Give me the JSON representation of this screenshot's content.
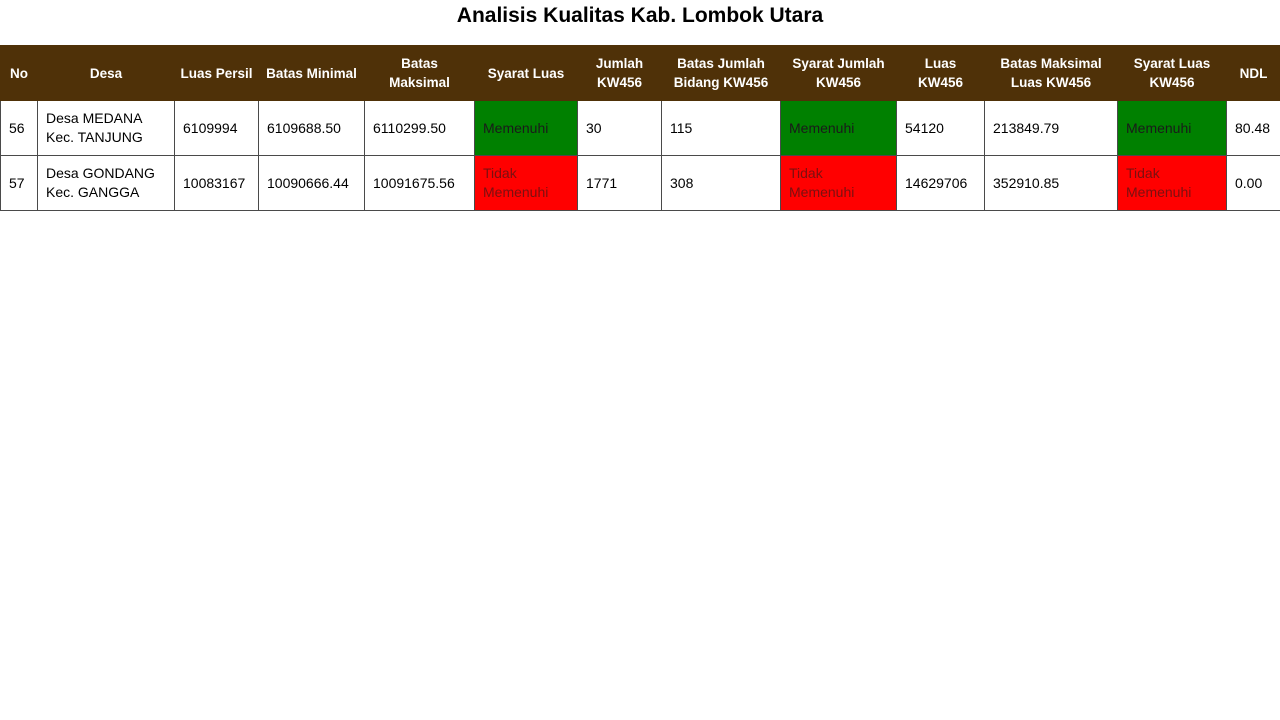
{
  "title": "Analisis Kualitas Kab. Lombok Utara",
  "colors": {
    "header_bg": "#4f3108",
    "header_text": "#ffffff",
    "memenuhi": "#008000",
    "tidak_memenuhi": "#ff0000"
  },
  "table": {
    "headers": [
      "No",
      "Desa",
      "Luas Persil",
      "Batas Minimal",
      "Batas Maksimal",
      "Syarat Luas",
      "Jumlah KW456",
      "Batas Jumlah Bidang KW456",
      "Syarat Jumlah KW456",
      "Luas KW456",
      "Batas Maksimal Luas KW456",
      "Syarat Luas KW456",
      "NDL"
    ],
    "rows": [
      {
        "no": "56",
        "desa": "Desa MEDANA Kec. TANJUNG",
        "luas_persil": "6109994",
        "batas_minimal": "6109688.50",
        "batas_maksimal": "6110299.50",
        "syarat_luas": "Memenuhi",
        "syarat_luas_status": "memenuhi",
        "jumlah_kw456": "30",
        "batas_jumlah_bidang_kw456": "115",
        "syarat_jumlah_kw456": "Memenuhi",
        "syarat_jumlah_kw456_status": "memenuhi",
        "luas_kw456": "54120",
        "batas_maksimal_luas_kw456": "213849.79",
        "syarat_luas_kw456": "Memenuhi",
        "syarat_luas_kw456_status": "memenuhi",
        "ndl": "80.48"
      },
      {
        "no": "57",
        "desa": "Desa GONDANG Kec. GANGGA",
        "luas_persil": "10083167",
        "batas_minimal": "10090666.44",
        "batas_maksimal": "10091675.56",
        "syarat_luas": "Tidak Memenuhi",
        "syarat_luas_status": "tidak_memenuhi",
        "jumlah_kw456": "1771",
        "batas_jumlah_bidang_kw456": "308",
        "syarat_jumlah_kw456": "Tidak Memenuhi",
        "syarat_jumlah_kw456_status": "tidak_memenuhi",
        "luas_kw456": "14629706",
        "batas_maksimal_luas_kw456": "352910.85",
        "syarat_luas_kw456": "Tidak Memenuhi",
        "syarat_luas_kw456_status": "tidak_memenuhi",
        "ndl": "0.00"
      }
    ]
  }
}
